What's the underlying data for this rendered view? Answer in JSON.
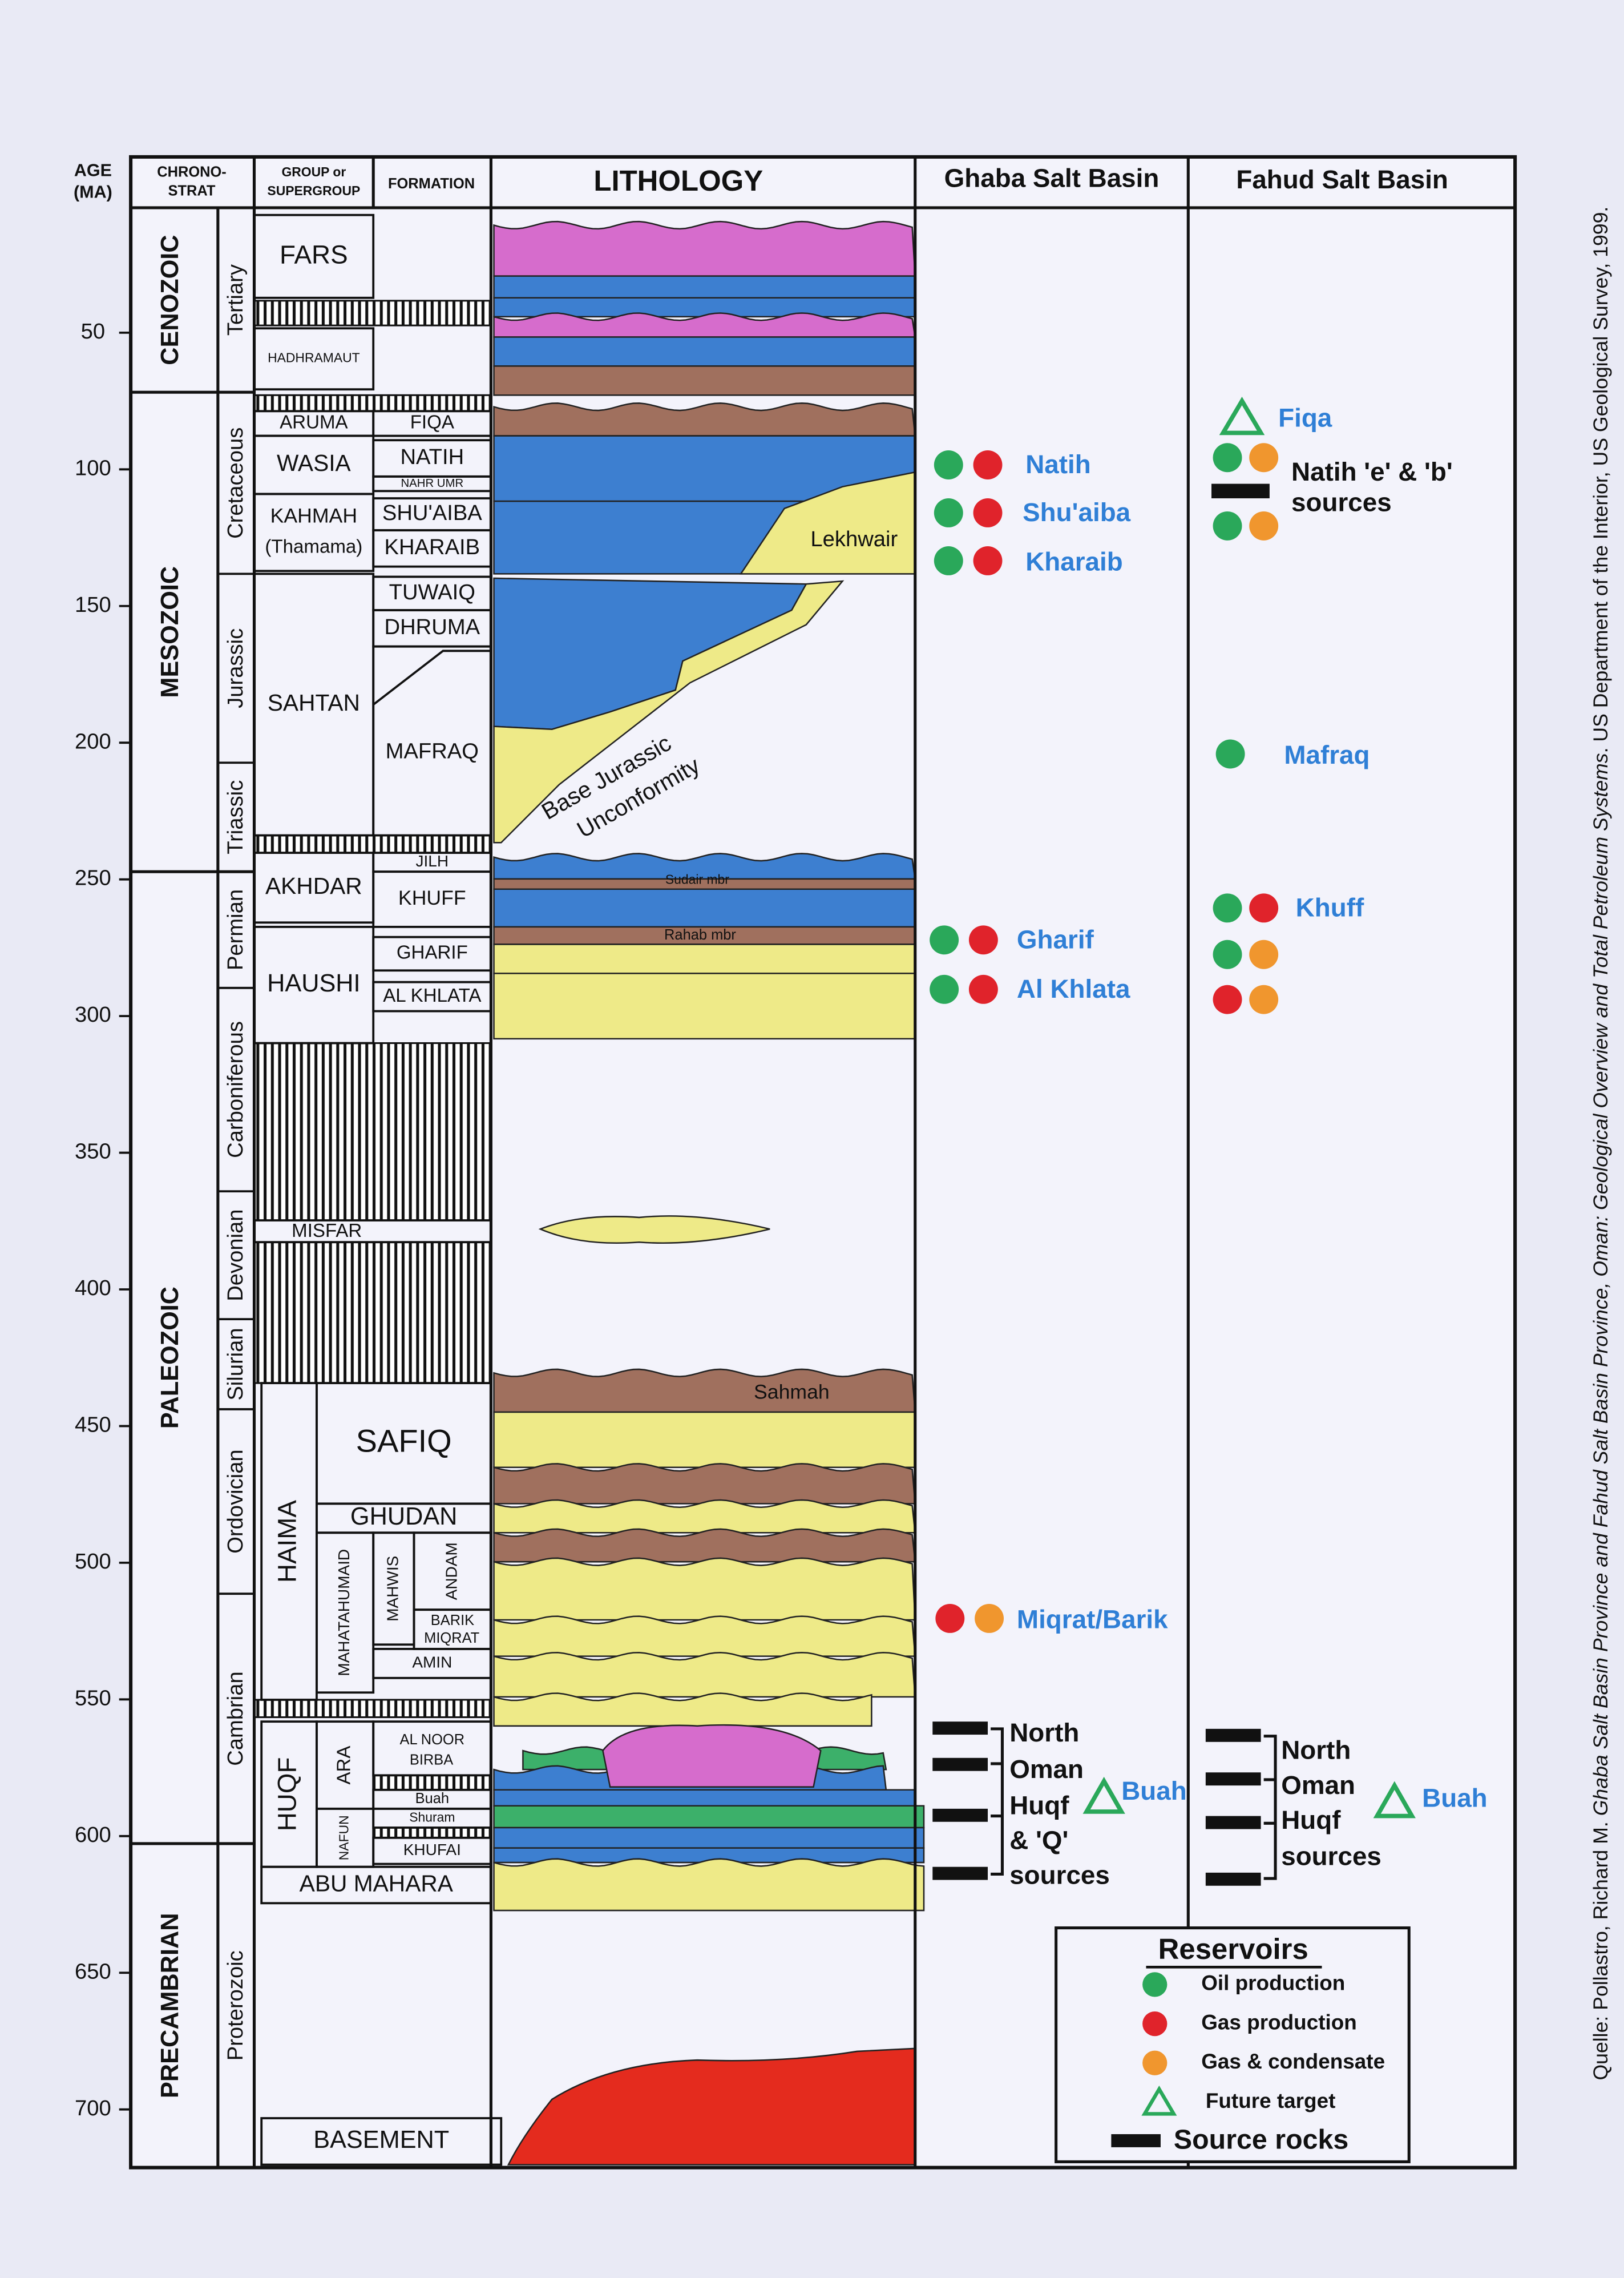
{
  "headers": {
    "age": [
      "AGE",
      "(MA)"
    ],
    "chronostrat": [
      "CHRONO-",
      "STRAT"
    ],
    "group": [
      "GROUP or",
      "SUPERGROUP"
    ],
    "formation": "FORMATION",
    "lithology": "LITHOLOGY"
  },
  "age_ticks": [
    50,
    100,
    150,
    200,
    250,
    300,
    350,
    400,
    450,
    500,
    550,
    600,
    650,
    700
  ],
  "eras": [
    "CENOZOIC",
    "MESOZOIC",
    "PALEOZOIC",
    "PRECAMBRIAN"
  ],
  "periods": [
    "Tertiary",
    "Cretaceous",
    "Jurassic",
    "Triassic",
    "Permian",
    "Carboniferous",
    "Devonian",
    "Silurian",
    "Ordovician",
    "Cambrian",
    "Proterozoic"
  ],
  "groups": [
    "FARS",
    "HADHRAMAUT",
    "ARUMA",
    "WASIA",
    "KAHMAH",
    "(Thamama)",
    "SAHTAN",
    "AKHDAR",
    "HAUSHI",
    "MISFAR",
    "SAFIQ",
    "GHUDAN",
    "HAIMA",
    "MAHATAHUMAID",
    "HUQF",
    "ARA",
    "NAFUN",
    "ABU MAHARA",
    "BASEMENT"
  ],
  "formations": [
    "FIQA",
    "NATIH",
    "NAHR UMR",
    "SHU'AIBA",
    "KHARAIB",
    "TUWAIQ",
    "DHRUMA",
    "MAFRAQ",
    "JILH",
    "KHUFF",
    "GHARIF",
    "AL KHLATA",
    "MAHWIS",
    "ANDAM",
    "BARIK",
    "MIQRAT",
    "AMIN",
    "AL NOOR",
    "BIRBA",
    "Buah",
    "Shuram",
    "KHUFAI"
  ],
  "lithology_labels": [
    "Lekhwair",
    "Base Jurassic",
    "Unconformity",
    "Sudair mbr",
    "Rahab mbr",
    "Sahmah"
  ],
  "ghaba": {
    "title": "Ghaba Salt Basin",
    "reservoirs": [
      "Natih",
      "Shu'aiba",
      "Kharaib",
      "Gharif",
      "Al Khlata",
      "Miqrat/Barik"
    ],
    "sources": [
      "North",
      "Oman",
      "Huqf",
      "& 'Q'",
      "sources"
    ],
    "future_target": "Buah"
  },
  "fahud": {
    "title": "Fahud Salt Basin",
    "reservoirs": [
      "Fiqa",
      "Mafraq",
      "Khuff"
    ],
    "natih_sources": [
      "Natih 'e' & 'b'",
      "sources"
    ],
    "sources": [
      "North",
      "Oman",
      "Huqf",
      "sources"
    ],
    "future_target": "Buah"
  },
  "legend": {
    "title": "Reservoirs",
    "items": [
      "Oil production",
      "Gas production",
      "Gas & condensate",
      "Future target",
      "Source rocks"
    ]
  },
  "citation": [
    "Quelle: Pollastro, Richard M. ",
    "Ghaba Salt Basin Province and Fahud Salt Basin Province, Oman: Geological Overview and Total Petroleum Systems",
    ". US Department of the Interior, US Geological Survey, 1999."
  ]
}
